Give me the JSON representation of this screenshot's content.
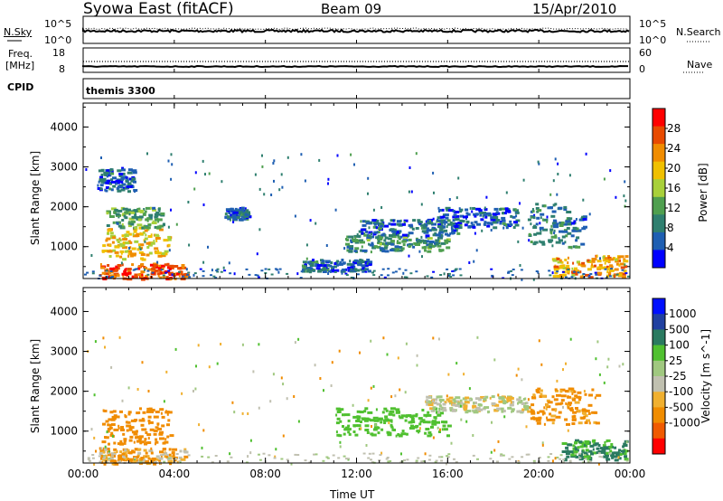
{
  "header": {
    "station": "Syowa East (fitACF)",
    "beam": "Beam 09",
    "date": "15/Apr/2010"
  },
  "nsky_panel": {
    "left_label": "N.Sky",
    "right_label": "N.Search",
    "left_ticks": [
      "10^5",
      "10^0"
    ],
    "right_ticks": [
      "10^5",
      "10^0"
    ]
  },
  "freq_panel": {
    "left_label_line1": "Freq.",
    "left_label_line2": "[MHz]",
    "right_label": "Nave",
    "left_ticks": [
      "18",
      "8"
    ],
    "right_ticks": [
      "60",
      "0"
    ]
  },
  "cpid_panel": {
    "label": "CPID",
    "value": "themis 3300"
  },
  "x_axis": {
    "label": "Time UT",
    "ticks": [
      "00:00",
      "04:00",
      "08:00",
      "12:00",
      "16:00",
      "20:00",
      "00:00"
    ]
  },
  "colors": {
    "power_scale": [
      "#0000ff",
      "#1f5fb2",
      "#2f7f6f",
      "#4f9f4f",
      "#a8d03a",
      "#f0c000",
      "#f08c00",
      "#e84a00",
      "#ff0000"
    ],
    "velocity_scale": [
      "#ff0000",
      "#f05a00",
      "#f08c00",
      "#f0b030",
      "#c0c0b0",
      "#a0c880",
      "#50c030",
      "#2a7a60",
      "#2040a0",
      "#0010ff"
    ]
  },
  "chart_data": [
    {
      "type": "heatmap",
      "title": "",
      "xlabel": "Time UT",
      "ylabel": "Slant Range [km]",
      "x_ticks": [
        "00:00",
        "04:00",
        "08:00",
        "12:00",
        "16:00",
        "20:00",
        "00:00"
      ],
      "xlim_hours": [
        0,
        24
      ],
      "ylim": [
        200,
        4600
      ],
      "y_ticks": [
        1000,
        2000,
        3000,
        4000
      ],
      "colorbar": {
        "label": "Power [dB]",
        "range": [
          0,
          32
        ],
        "ticks": [
          4,
          8,
          12,
          16,
          20,
          24,
          28
        ]
      },
      "regions": [
        {
          "t": [
            0.7,
            4.5
          ],
          "r": [
            200,
            600
          ],
          "value": 27
        },
        {
          "t": [
            0.8,
            3.8
          ],
          "r": [
            700,
            1500
          ],
          "value": 20
        },
        {
          "t": [
            1.0,
            3.5
          ],
          "r": [
            1500,
            2000
          ],
          "value": 12
        },
        {
          "t": [
            0.6,
            2.2
          ],
          "r": [
            2400,
            3000
          ],
          "value": 6
        },
        {
          "t": [
            6.2,
            7.2
          ],
          "r": [
            1700,
            2000
          ],
          "value": 7
        },
        {
          "t": [
            9.5,
            12.5
          ],
          "r": [
            400,
            700
          ],
          "value": 6
        },
        {
          "t": [
            11.5,
            16.0
          ],
          "r": [
            900,
            1300
          ],
          "value": 10
        },
        {
          "t": [
            12.0,
            16.5
          ],
          "r": [
            1300,
            1700
          ],
          "value": 7
        },
        {
          "t": [
            15.5,
            19.0
          ],
          "r": [
            1500,
            2000
          ],
          "value": 6
        },
        {
          "t": [
            19.5,
            22.0
          ],
          "r": [
            1000,
            2100
          ],
          "value": 8
        },
        {
          "t": [
            20.5,
            23.8
          ],
          "r": [
            250,
            800
          ],
          "value": 22
        }
      ]
    },
    {
      "type": "heatmap",
      "title": "",
      "xlabel": "Time UT",
      "ylabel": "Slant Range [km]",
      "x_ticks": [
        "00:00",
        "04:00",
        "08:00",
        "12:00",
        "16:00",
        "20:00",
        "00:00"
      ],
      "xlim_hours": [
        0,
        24
      ],
      "ylim": [
        200,
        4600
      ],
      "y_ticks": [
        1000,
        2000,
        3000,
        4000
      ],
      "colorbar": {
        "label": "Velocity [m s^-1]",
        "ticks": [
          1000,
          500,
          100,
          25,
          -25,
          -100,
          -500,
          -1000
        ]
      },
      "regions": [
        {
          "t": [
            0.7,
            4.5
          ],
          "r": [
            200,
            600
          ],
          "value": -100
        },
        {
          "t": [
            0.8,
            3.8
          ],
          "r": [
            700,
            1600
          ],
          "value": -300
        },
        {
          "t": [
            11.0,
            16.0
          ],
          "r": [
            900,
            1600
          ],
          "value": 200
        },
        {
          "t": [
            15.0,
            19.5
          ],
          "r": [
            1500,
            1900
          ],
          "value": 0
        },
        {
          "t": [
            19.5,
            22.5
          ],
          "r": [
            1200,
            2100
          ],
          "value": -150
        },
        {
          "t": [
            21.0,
            23.8
          ],
          "r": [
            300,
            800
          ],
          "value": 600
        }
      ]
    }
  ]
}
